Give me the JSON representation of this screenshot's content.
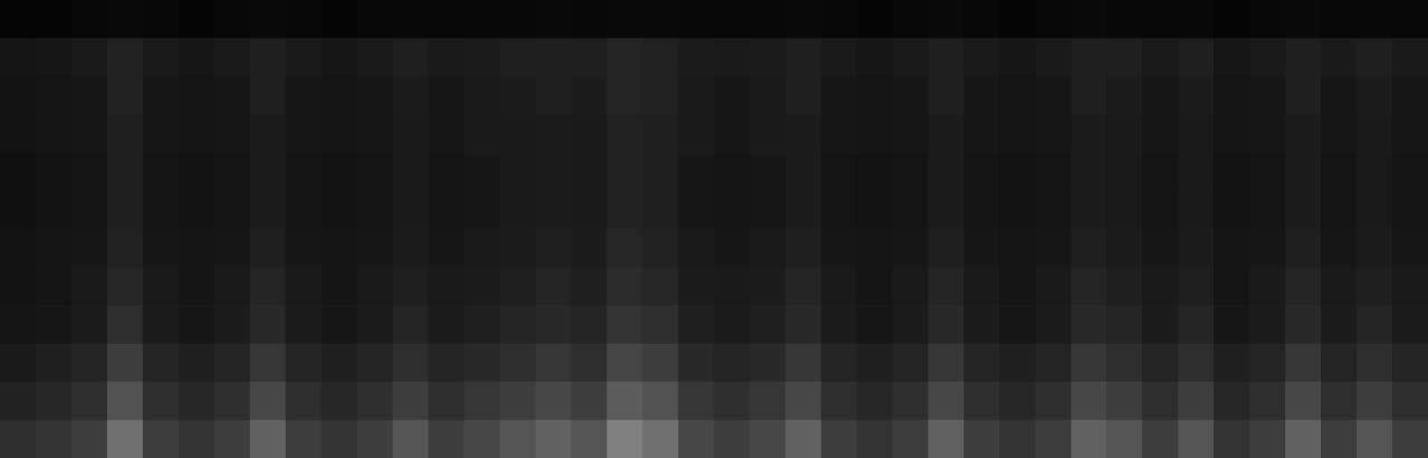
{
  "chart_data": {
    "type": "heatmap",
    "tick_labels": false,
    "color": "#ffffff",
    "color_range": [
      0,
      1
    ],
    "cells": [
      [
        0.02,
        0.02,
        0.03,
        0.04,
        0.03,
        0.02,
        0.03,
        0.04,
        0.03,
        0.02,
        0.03,
        0.03,
        0.03,
        0.03,
        0.03,
        0.04,
        0.03,
        0.04,
        0.04,
        0.03,
        0.03,
        0.03,
        0.04,
        0.03,
        0.02,
        0.03,
        0.04,
        0.03,
        0.02,
        0.03,
        0.04,
        0.03,
        0.03,
        0.03,
        0.02,
        0.03,
        0.04,
        0.03,
        0.03,
        0.03
      ],
      [
        0.08,
        0.09,
        0.1,
        0.13,
        0.1,
        0.09,
        0.1,
        0.12,
        0.1,
        0.09,
        0.1,
        0.12,
        0.1,
        0.11,
        0.12,
        0.12,
        0.12,
        0.14,
        0.13,
        0.11,
        0.1,
        0.11,
        0.12,
        0.1,
        0.09,
        0.1,
        0.12,
        0.1,
        0.09,
        0.1,
        0.12,
        0.12,
        0.1,
        0.12,
        0.09,
        0.1,
        0.12,
        0.1,
        0.12,
        0.1
      ],
      [
        0.07,
        0.08,
        0.09,
        0.13,
        0.09,
        0.08,
        0.09,
        0.12,
        0.09,
        0.08,
        0.09,
        0.11,
        0.09,
        0.1,
        0.11,
        0.12,
        0.11,
        0.14,
        0.13,
        0.1,
        0.09,
        0.1,
        0.12,
        0.09,
        0.08,
        0.09,
        0.12,
        0.09,
        0.08,
        0.09,
        0.12,
        0.11,
        0.09,
        0.11,
        0.08,
        0.09,
        0.12,
        0.09,
        0.11,
        0.09
      ],
      [
        0.07,
        0.08,
        0.09,
        0.12,
        0.09,
        0.08,
        0.09,
        0.11,
        0.09,
        0.08,
        0.09,
        0.1,
        0.09,
        0.1,
        0.1,
        0.11,
        0.1,
        0.13,
        0.12,
        0.1,
        0.09,
        0.1,
        0.11,
        0.09,
        0.08,
        0.09,
        0.11,
        0.09,
        0.08,
        0.09,
        0.11,
        0.1,
        0.09,
        0.1,
        0.08,
        0.09,
        0.11,
        0.09,
        0.1,
        0.09
      ],
      [
        0.06,
        0.07,
        0.08,
        0.12,
        0.08,
        0.07,
        0.08,
        0.11,
        0.08,
        0.07,
        0.08,
        0.1,
        0.08,
        0.09,
        0.1,
        0.11,
        0.1,
        0.13,
        0.12,
        0.09,
        0.08,
        0.09,
        0.11,
        0.08,
        0.07,
        0.08,
        0.11,
        0.08,
        0.07,
        0.08,
        0.11,
        0.1,
        0.08,
        0.1,
        0.07,
        0.08,
        0.11,
        0.08,
        0.1,
        0.08
      ],
      [
        0.06,
        0.07,
        0.08,
        0.12,
        0.08,
        0.07,
        0.08,
        0.11,
        0.08,
        0.07,
        0.08,
        0.1,
        0.08,
        0.09,
        0.1,
        0.11,
        0.1,
        0.13,
        0.12,
        0.09,
        0.08,
        0.09,
        0.11,
        0.08,
        0.07,
        0.08,
        0.11,
        0.08,
        0.07,
        0.08,
        0.11,
        0.1,
        0.08,
        0.1,
        0.07,
        0.08,
        0.11,
        0.08,
        0.1,
        0.08
      ],
      [
        0.07,
        0.08,
        0.09,
        0.13,
        0.09,
        0.08,
        0.09,
        0.12,
        0.09,
        0.08,
        0.09,
        0.11,
        0.09,
        0.1,
        0.11,
        0.12,
        0.11,
        0.15,
        0.13,
        0.1,
        0.09,
        0.1,
        0.12,
        0.09,
        0.08,
        0.09,
        0.12,
        0.09,
        0.08,
        0.09,
        0.12,
        0.11,
        0.09,
        0.11,
        0.08,
        0.09,
        0.12,
        0.09,
        0.11,
        0.09
      ],
      [
        0.07,
        0.08,
        0.1,
        0.15,
        0.1,
        0.08,
        0.1,
        0.14,
        0.1,
        0.08,
        0.1,
        0.12,
        0.1,
        0.11,
        0.12,
        0.14,
        0.12,
        0.17,
        0.15,
        0.11,
        0.1,
        0.11,
        0.14,
        0.1,
        0.08,
        0.1,
        0.14,
        0.1,
        0.08,
        0.1,
        0.14,
        0.12,
        0.1,
        0.12,
        0.08,
        0.1,
        0.14,
        0.1,
        0.12,
        0.1
      ],
      [
        0.08,
        0.09,
        0.11,
        0.18,
        0.11,
        0.09,
        0.11,
        0.16,
        0.11,
        0.09,
        0.11,
        0.14,
        0.11,
        0.12,
        0.14,
        0.16,
        0.14,
        0.2,
        0.18,
        0.12,
        0.11,
        0.12,
        0.16,
        0.11,
        0.09,
        0.11,
        0.16,
        0.11,
        0.09,
        0.11,
        0.16,
        0.14,
        0.11,
        0.14,
        0.09,
        0.11,
        0.16,
        0.11,
        0.14,
        0.11
      ],
      [
        0.1,
        0.12,
        0.14,
        0.24,
        0.14,
        0.12,
        0.14,
        0.21,
        0.14,
        0.12,
        0.14,
        0.18,
        0.14,
        0.16,
        0.18,
        0.21,
        0.18,
        0.27,
        0.24,
        0.16,
        0.14,
        0.16,
        0.21,
        0.14,
        0.12,
        0.14,
        0.21,
        0.14,
        0.12,
        0.14,
        0.21,
        0.18,
        0.14,
        0.18,
        0.12,
        0.14,
        0.21,
        0.14,
        0.18,
        0.14
      ],
      [
        0.13,
        0.15,
        0.18,
        0.32,
        0.18,
        0.15,
        0.18,
        0.28,
        0.18,
        0.15,
        0.18,
        0.24,
        0.18,
        0.21,
        0.24,
        0.28,
        0.24,
        0.36,
        0.32,
        0.21,
        0.18,
        0.21,
        0.28,
        0.18,
        0.15,
        0.18,
        0.28,
        0.18,
        0.15,
        0.18,
        0.28,
        0.24,
        0.18,
        0.24,
        0.15,
        0.18,
        0.28,
        0.18,
        0.24,
        0.18
      ],
      [
        0.18,
        0.2,
        0.24,
        0.44,
        0.24,
        0.2,
        0.24,
        0.38,
        0.24,
        0.2,
        0.24,
        0.33,
        0.24,
        0.28,
        0.33,
        0.38,
        0.33,
        0.5,
        0.44,
        0.28,
        0.24,
        0.28,
        0.38,
        0.24,
        0.2,
        0.24,
        0.38,
        0.24,
        0.2,
        0.24,
        0.38,
        0.33,
        0.24,
        0.33,
        0.2,
        0.24,
        0.38,
        0.24,
        0.33,
        0.24
      ]
    ]
  }
}
